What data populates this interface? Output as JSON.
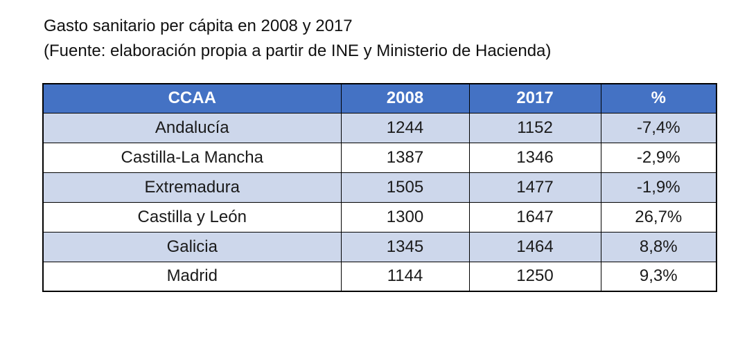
{
  "header": {
    "title": "Gasto sanitario per cápita en 2008 y 2017",
    "subtitle": "(Fuente: elaboración propia a partir de INE y Ministerio de Hacienda)"
  },
  "colors": {
    "header_bg": "#4472C4",
    "band_bg": "#CDD7EB",
    "border": "#000000"
  },
  "chart_data": {
    "type": "table",
    "title": "Gasto sanitario per cápita en 2008 y 2017",
    "source": "Fuente: elaboración propia a partir de INE y Ministerio de Hacienda",
    "columns": [
      "CCAA",
      "2008",
      "2017",
      "%"
    ],
    "rows": [
      [
        "Andalucía",
        "1244",
        "1152",
        "-7,4%"
      ],
      [
        "Castilla-La Mancha",
        "1387",
        "1346",
        "-2,9%"
      ],
      [
        "Extremadura",
        "1505",
        "1477",
        "-1,9%"
      ],
      [
        "Castilla y León",
        "1300",
        "1647",
        "26,7%"
      ],
      [
        "Galicia",
        "1345",
        "1464",
        "8,8%"
      ],
      [
        "Madrid",
        "1144",
        "1250",
        "9,3%"
      ]
    ]
  }
}
